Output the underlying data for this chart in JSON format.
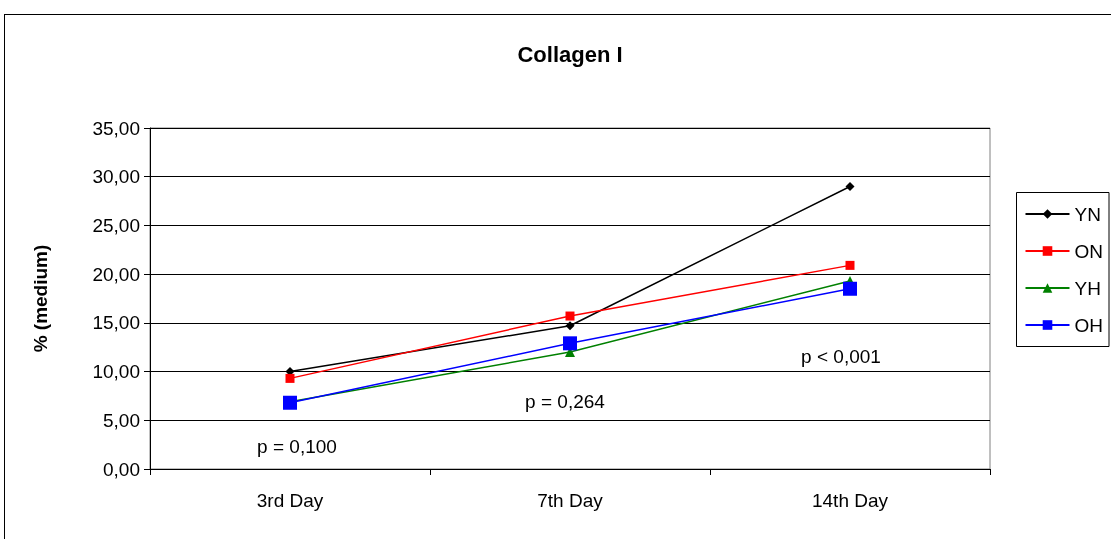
{
  "chart_data": {
    "type": "line",
    "title": "Collagen I",
    "ylabel": "% (medium)",
    "categories": [
      "3rd Day",
      "7th Day",
      "14th Day"
    ],
    "series": [
      {
        "name": "YN",
        "color": "#000000",
        "marker": "diamond",
        "values": [
          10.0,
          14.7,
          29.0
        ]
      },
      {
        "name": "ON",
        "color": "#ff0000",
        "marker": "square",
        "values": [
          9.3,
          15.7,
          20.9
        ]
      },
      {
        "name": "YH",
        "color": "#008000",
        "marker": "triangle",
        "values": [
          6.9,
          12.0,
          19.3
        ]
      },
      {
        "name": "OH",
        "color": "#0000ff",
        "marker": "square",
        "values": [
          6.8,
          12.9,
          18.5
        ]
      }
    ],
    "ylim": [
      0,
      35
    ],
    "yticks": [
      {
        "value": 0,
        "label": "0,00"
      },
      {
        "value": 5,
        "label": "5,00"
      },
      {
        "value": 10,
        "label": "10,00"
      },
      {
        "value": 15,
        "label": "15,00"
      },
      {
        "value": 20,
        "label": "20,00"
      },
      {
        "value": 25,
        "label": "25,00"
      },
      {
        "value": 30,
        "label": "30,00"
      },
      {
        "value": 35,
        "label": "35,00"
      }
    ],
    "grid": "y",
    "legend": "right",
    "annotations": [
      "p = 0,100",
      "p = 0,264",
      "p < 0,001"
    ]
  }
}
